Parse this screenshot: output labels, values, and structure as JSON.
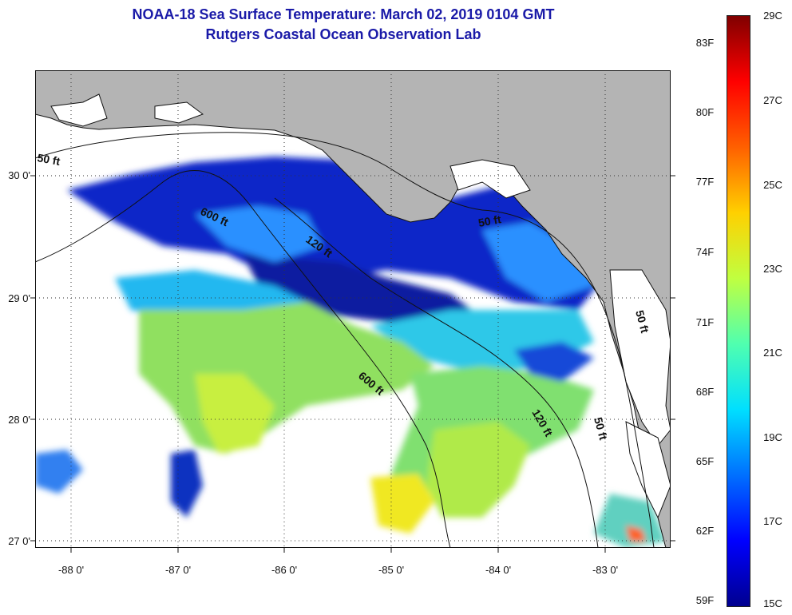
{
  "title": {
    "line1": "NOAA-18 Sea Surface Temperature:  March 02, 2019 0104 GMT",
    "line2": "Rutgers Coastal Ocean Observation Lab"
  },
  "map": {
    "lat_labels": [
      "30 0'",
      "29 0'",
      "28 0'",
      "27 0'"
    ],
    "lon_labels": [
      "-88 0'",
      "-87 0'",
      "-86 0'",
      "-85 0'",
      "-84 0'",
      "-83 0'"
    ],
    "contour_labels": [
      "50 ft",
      "600 ft",
      "120 ft",
      "50 ft",
      "600 ft",
      "120 ft",
      "50 ft",
      "50 ft"
    ],
    "land_color": "#b4b4b4",
    "cloud_color": "#ffffff",
    "grid": "dotted"
  },
  "colorbar": {
    "fahrenheit": [
      "83F",
      "80F",
      "77F",
      "74F",
      "71F",
      "68F",
      "65F",
      "62F",
      "59F"
    ],
    "celsius": [
      "29C",
      "27C",
      "25C",
      "23C",
      "21C",
      "19C",
      "17C",
      "15C"
    ],
    "colormap": [
      "#00008f",
      "#0000ff",
      "#0070ff",
      "#00dfff",
      "#50ffaf",
      "#c0ff40",
      "#ffd000",
      "#ff6000",
      "#ff0000",
      "#800000"
    ]
  }
}
